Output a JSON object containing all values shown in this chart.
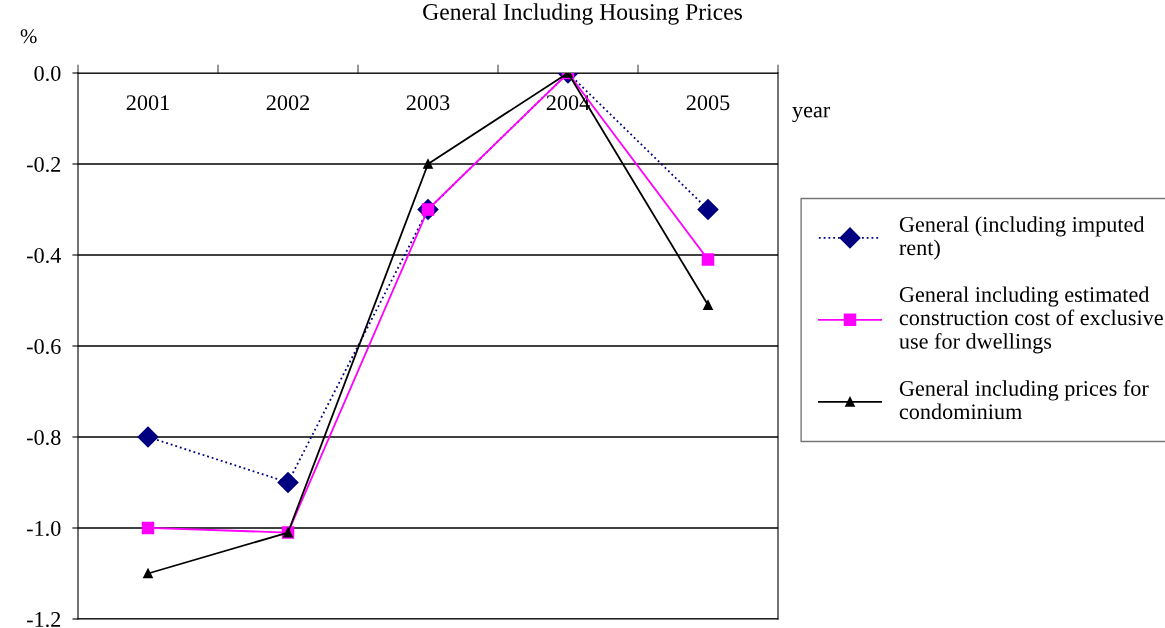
{
  "chart_data": {
    "type": "line",
    "title": "General Including Housing Prices",
    "xlabel": "year",
    "ylabel": "%",
    "categories": [
      "2001",
      "2002",
      "2003",
      "2004",
      "2005"
    ],
    "series": [
      {
        "name": "General (including imputed\nrent)",
        "color": "#000080",
        "marker": "diamond",
        "line_style": "dotted",
        "values": [
          -0.8,
          -0.9,
          -0.3,
          0.0,
          -0.3
        ]
      },
      {
        "name": "General including estimated\nconstruction cost of exclusive\nuse for dwellings",
        "color": "#ff00ff",
        "marker": "square",
        "line_style": "solid",
        "values": [
          -1.0,
          -1.01,
          -0.3,
          0.0,
          -0.41
        ]
      },
      {
        "name": "General including prices for\ncondominium",
        "color": "#000000",
        "marker": "triangle",
        "line_style": "solid",
        "values": [
          -1.1,
          -1.01,
          -0.2,
          0.0,
          -0.51
        ]
      }
    ],
    "ylim": [
      -1.2,
      0
    ],
    "yticks": [
      {
        "value": 0,
        "label": "0.0"
      },
      {
        "value": -0.2,
        "label": "-0.2"
      },
      {
        "value": -0.4,
        "label": "-0.4"
      },
      {
        "value": -0.6,
        "label": "-0.6"
      },
      {
        "value": -0.8,
        "label": "-0.8"
      },
      {
        "value": -1.0,
        "label": "-1.0"
      },
      {
        "value": -1.2,
        "label": "-1.2"
      }
    ],
    "grid": "y",
    "legend": "right"
  }
}
